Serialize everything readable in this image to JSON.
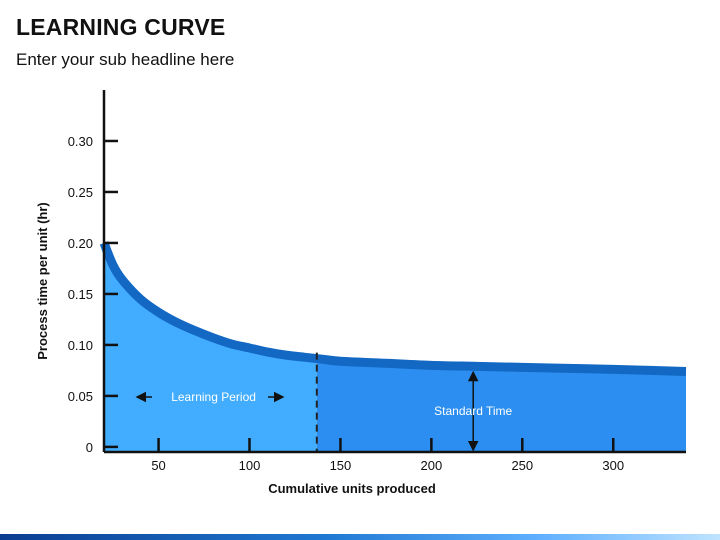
{
  "page": {
    "title": "LEARNING CURVE",
    "subtitle": "Enter your sub headline here"
  },
  "colors": {
    "learning_fill": "#42adff",
    "standard_fill": "#2b8ef0",
    "curve_stroke": "#1368c4",
    "axis": "#111111",
    "divider": "#222222",
    "footer_start": "#0a3d91",
    "footer_end": "#bfe3ff"
  },
  "chart_data": {
    "type": "area",
    "xlabel": "Cumulative units produced",
    "ylabel": "Process time per unit (hr)",
    "x_ticks": [
      50,
      100,
      150,
      200,
      250,
      300
    ],
    "y_ticks": [
      0,
      0.05,
      0.1,
      0.15,
      0.2,
      0.25,
      0.3
    ],
    "y_tick_labels": [
      "0",
      "0.05",
      "0.10",
      "0.15",
      "0.20",
      "0.25",
      "0.30"
    ],
    "xlim": [
      20,
      340
    ],
    "ylim": [
      -0.005,
      0.35
    ],
    "series": [
      {
        "x": [
          20,
          25,
          30,
          40,
          50,
          60,
          70,
          80,
          90,
          100,
          110,
          120,
          130,
          140,
          150,
          175,
          200,
          225,
          250,
          275,
          300,
          340
        ],
        "y": [
          0.2,
          0.178,
          0.164,
          0.145,
          0.132,
          0.122,
          0.114,
          0.107,
          0.101,
          0.097,
          0.093,
          0.09,
          0.088,
          0.086,
          0.084,
          0.082,
          0.08,
          0.079,
          0.078,
          0.077,
          0.076,
          0.074
        ]
      }
    ],
    "divider_x": 137,
    "annotations": {
      "learning_period": "Learning Period",
      "standard_time": "Standard Time"
    },
    "standard_time_arrow_x": 223
  }
}
